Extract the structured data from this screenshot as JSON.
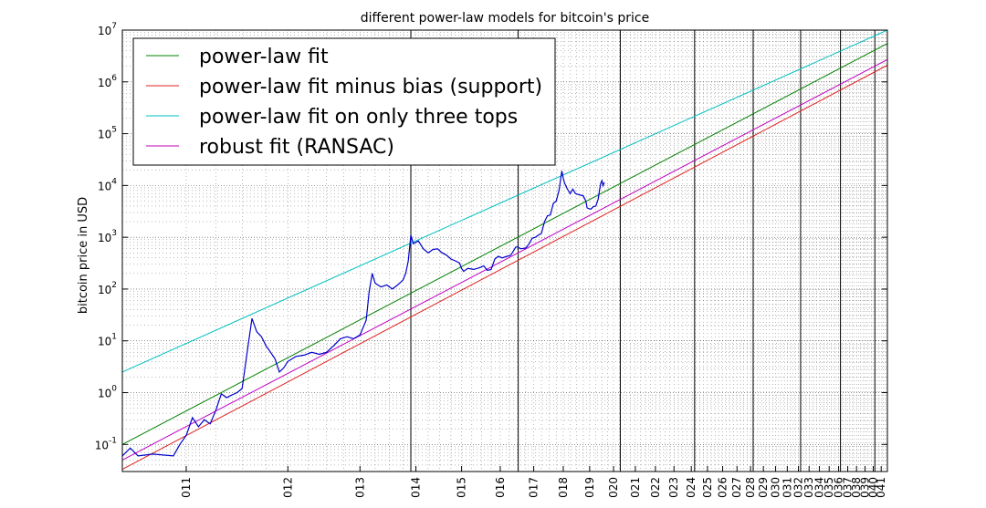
{
  "chart_data": {
    "type": "line",
    "title": "different power-law models for bitcoin's price",
    "xlabel": "",
    "ylabel": "bitcoin price in USD",
    "y_scale": "log",
    "x_scale": "log (days since genesis block)",
    "ylim": [
      0.03,
      10000000
    ],
    "y_ticks": [
      {
        "value": 0.1,
        "base": "10",
        "exp": "-1"
      },
      {
        "value": 1,
        "base": "10",
        "exp": "0"
      },
      {
        "value": 10,
        "base": "10",
        "exp": "1"
      },
      {
        "value": 100,
        "base": "10",
        "exp": "2"
      },
      {
        "value": 1000,
        "base": "10",
        "exp": "3"
      },
      {
        "value": 10000,
        "base": "10",
        "exp": "4"
      },
      {
        "value": 100000,
        "base": "10",
        "exp": "5"
      },
      {
        "value": 1000000,
        "base": "10",
        "exp": "6"
      },
      {
        "value": 10000000,
        "base": "10",
        "exp": "7"
      }
    ],
    "x_tick_labels": [
      "011",
      "012",
      "013",
      "014",
      "015",
      "016",
      "017",
      "018",
      "019",
      "020",
      "021",
      "022",
      "023",
      "024",
      "025",
      "026",
      "027",
      "028",
      "029",
      "030",
      "031",
      "032",
      "033",
      "034",
      "035",
      "036",
      "037",
      "038",
      "039",
      "040",
      "041"
    ],
    "vertical_markers": [
      "013",
      "016",
      "020",
      "024",
      "028",
      "032",
      "036",
      "040"
    ],
    "grid": true,
    "legend_position": "top-left",
    "series": [
      {
        "name": "power-law fit",
        "color": "#008000",
        "y_start": 0.1,
        "y_end": 5500000
      },
      {
        "name": "power-law fit minus bias (support)",
        "color": "#e02020",
        "y_start": 0.033,
        "y_end": 2100000
      },
      {
        "name": "power-law fit on only three tops",
        "color": "#00bfbf",
        "y_start": 2.5,
        "y_end": 10000000
      },
      {
        "name": "robust fit (RANSAC)",
        "color": "#bf00bf",
        "y_start": 0.05,
        "y_end": 2700000
      },
      {
        "name": "",
        "color": "#0000cc",
        "points": [
          [
            "2010.55",
            0.06
          ],
          [
            "2010.6",
            0.085
          ],
          [
            "2010.65",
            0.06
          ],
          [
            "2010.75",
            0.065
          ],
          [
            "2010.9",
            0.06
          ],
          [
            "2010.95",
            0.1
          ],
          [
            "2011.0",
            0.15
          ],
          [
            "2011.05",
            0.33
          ],
          [
            "2011.1",
            0.22
          ],
          [
            "2011.15",
            0.3
          ],
          [
            "2011.2",
            0.25
          ],
          [
            "2011.25",
            0.45
          ],
          [
            "2011.3",
            0.95
          ],
          [
            "2011.35",
            0.8
          ],
          [
            "2011.4",
            0.9
          ],
          [
            "2011.45",
            1.0
          ],
          [
            "2011.5",
            1.2
          ],
          [
            "2011.55",
            6
          ],
          [
            "2011.6",
            27
          ],
          [
            "2011.65",
            15
          ],
          [
            "2011.7",
            12
          ],
          [
            "2011.75",
            8
          ],
          [
            "2011.8",
            6
          ],
          [
            "2011.85",
            4.5
          ],
          [
            "2011.9",
            2.5
          ],
          [
            "2011.95",
            3.0
          ],
          [
            "2012.0",
            4
          ],
          [
            "2012.1",
            5
          ],
          [
            "2012.2",
            5.3
          ],
          [
            "2012.3",
            6
          ],
          [
            "2012.4",
            5.5
          ],
          [
            "2012.5",
            6
          ],
          [
            "2012.6",
            8
          ],
          [
            "2012.7",
            11
          ],
          [
            "2012.8",
            12
          ],
          [
            "2012.9",
            11
          ],
          [
            "2013.0",
            13
          ],
          [
            "2013.1",
            25
          ],
          [
            "2013.15",
            90
          ],
          [
            "2013.2",
            200
          ],
          [
            "2013.25",
            130
          ],
          [
            "2013.35",
            110
          ],
          [
            "2013.45",
            120
          ],
          [
            "2013.55",
            100
          ],
          [
            "2013.65",
            120
          ],
          [
            "2013.75",
            150
          ],
          [
            "2013.8",
            200
          ],
          [
            "2013.85",
            350
          ],
          [
            "2013.9",
            1100
          ],
          [
            "2013.95",
            750
          ],
          [
            "2014.0",
            800
          ],
          [
            "2014.05",
            850
          ],
          [
            "2014.15",
            600
          ],
          [
            "2014.25",
            500
          ],
          [
            "2014.35",
            580
          ],
          [
            "2014.45",
            600
          ],
          [
            "2014.55",
            500
          ],
          [
            "2014.65",
            450
          ],
          [
            "2014.75",
            380
          ],
          [
            "2014.85",
            350
          ],
          [
            "2014.95",
            320
          ],
          [
            "2015.0",
            250
          ],
          [
            "2015.05",
            220
          ],
          [
            "2015.15",
            250
          ],
          [
            "2015.3",
            240
          ],
          [
            "2015.45",
            260
          ],
          [
            "2015.55",
            280
          ],
          [
            "2015.65",
            230
          ],
          [
            "2015.75",
            240
          ],
          [
            "2015.85",
            380
          ],
          [
            "2015.95",
            430
          ],
          [
            "2016.05",
            400
          ],
          [
            "2016.15",
            420
          ],
          [
            "2016.3",
            450
          ],
          [
            "2016.45",
            650
          ],
          [
            "2016.5",
            650
          ],
          [
            "2016.6",
            600
          ],
          [
            "2016.75",
            620
          ],
          [
            "2016.85",
            740
          ],
          [
            "2016.95",
            960
          ],
          [
            "2017.05",
            1000
          ],
          [
            "2017.15",
            1100
          ],
          [
            "2017.25",
            1200
          ],
          [
            "2017.35",
            2000
          ],
          [
            "2017.45",
            2600
          ],
          [
            "2017.55",
            2700
          ],
          [
            "2017.65",
            4500
          ],
          [
            "2017.75",
            5000
          ],
          [
            "2017.85",
            8000
          ],
          [
            "2017.95",
            19000
          ],
          [
            "2018.0",
            14000
          ],
          [
            "2018.05",
            11000
          ],
          [
            "2018.15",
            8500
          ],
          [
            "2018.25",
            7000
          ],
          [
            "2018.35",
            8500
          ],
          [
            "2018.45",
            7000
          ],
          [
            "2018.55",
            6700
          ],
          [
            "2018.65",
            6500
          ],
          [
            "2018.75",
            6300
          ],
          [
            "2018.85",
            5000
          ],
          [
            "2018.9",
            3700
          ],
          [
            "2018.95",
            3600
          ],
          [
            "2019.05",
            3500
          ],
          [
            "2019.15",
            3900
          ],
          [
            "2019.25",
            4000
          ],
          [
            "2019.35",
            5500
          ],
          [
            "2019.4",
            8000
          ],
          [
            "2019.45",
            11000
          ],
          [
            "2019.5",
            12500
          ],
          [
            "2019.55",
            10000
          ],
          [
            "2019.6",
            11500
          ]
        ]
      }
    ]
  }
}
